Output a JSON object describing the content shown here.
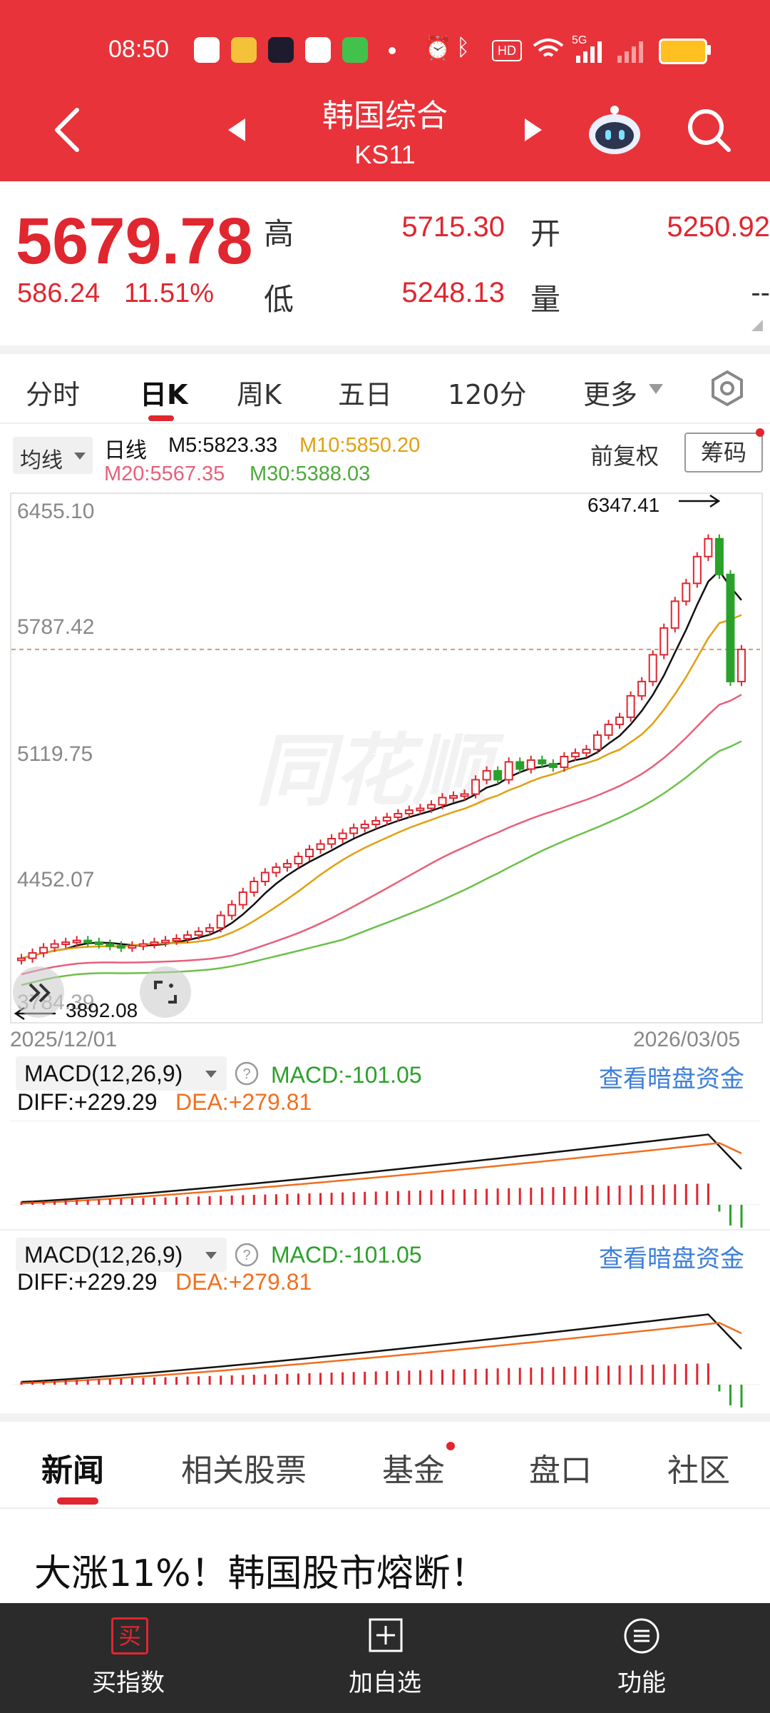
{
  "status_bar": {
    "time": "08:50",
    "network": "5G"
  },
  "header": {
    "title": "韩国综合",
    "code": "KS11"
  },
  "quote": {
    "price": "5679.78",
    "change": "586.24",
    "change_pct": "11.51%",
    "high_label": "高",
    "high": "5715.30",
    "open_label": "开",
    "open": "5250.92",
    "low_label": "低",
    "low": "5248.13",
    "volume_label": "量",
    "volume": "--"
  },
  "tabs": [
    "分时",
    "日K",
    "周K",
    "五日",
    "120分",
    "更多"
  ],
  "active_tab": "日K",
  "chart_toolbar": {
    "ma_dropdown": "均线",
    "period": "日线",
    "m5": "M5:5823.33",
    "m10": "M10:5850.20",
    "m20": "M20:5567.35",
    "m30": "M30:5388.03",
    "adjust": "前复权",
    "chip_button": "筹码"
  },
  "chart": {
    "y_labels": [
      "6455.10",
      "5787.42",
      "5119.75",
      "4452.07",
      "3784.39"
    ],
    "high_mark": "6347.41",
    "low_mark": "3892.08",
    "date_start": "2025/12/01",
    "date_end": "2026/03/05",
    "watermark": "同花顺"
  },
  "macd_panels": [
    {
      "name": "MACD(12,26,9)",
      "macd": "MACD:-101.05",
      "diff": "DIFF:+229.29",
      "dea": "DEA:+279.81",
      "link": "查看暗盘资金"
    },
    {
      "name": "MACD(12,26,9)",
      "macd": "MACD:-101.05",
      "diff": "DIFF:+229.29",
      "dea": "DEA:+279.81",
      "link": "查看暗盘资金"
    }
  ],
  "content_tabs": [
    "新闻",
    "相关股票",
    "基金",
    "盘口",
    "社区"
  ],
  "active_content_tab": "新闻",
  "headline": "大涨11%！韩国股市熔断！",
  "bottom_nav": [
    {
      "label": "买指数",
      "icon": "buy-icon",
      "icon_text": "买"
    },
    {
      "label": "加自选",
      "icon": "add-watchlist-icon"
    },
    {
      "label": "功能",
      "icon": "menu-icon"
    }
  ],
  "colors": {
    "header": "#e8333a",
    "up": "#e0262f",
    "down": "#2aa12a",
    "m5": "#111111",
    "m10": "#e0a010",
    "m20": "#e8607a",
    "m30": "#6cc04a"
  }
}
